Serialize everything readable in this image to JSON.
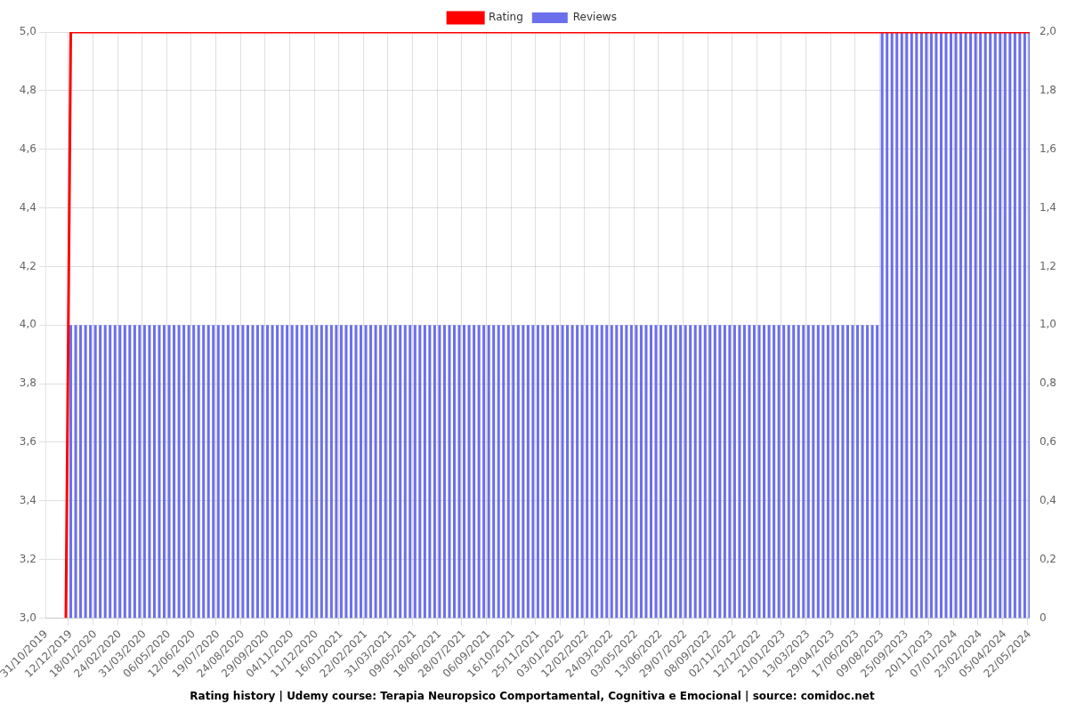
{
  "chart_data": {
    "type": "line",
    "title": "Rating history | Udemy course: Terapia Neuropsico Comportamental, Cognitiva e Emocional | source: comidoc.net",
    "categories": [
      "31/10/2019",
      null,
      null,
      null,
      null,
      "12/12/2019",
      null,
      null,
      null,
      null,
      "18/01/2020",
      null,
      null,
      null,
      null,
      "24/02/2020",
      null,
      null,
      null,
      null,
      "31/03/2020",
      null,
      null,
      null,
      null,
      "06/05/2020",
      null,
      null,
      null,
      null,
      "12/06/2020",
      null,
      null,
      null,
      null,
      "19/07/2020",
      null,
      null,
      null,
      null,
      "24/08/2020",
      null,
      null,
      null,
      null,
      "29/09/2020",
      null,
      null,
      null,
      null,
      "04/11/2020",
      null,
      null,
      null,
      null,
      "11/12/2020",
      null,
      null,
      null,
      null,
      "16/01/2021",
      null,
      null,
      null,
      null,
      "22/02/2021",
      null,
      null,
      null,
      null,
      "31/03/2021",
      null,
      null,
      null,
      null,
      "09/05/2021",
      null,
      null,
      null,
      null,
      "18/06/2021",
      null,
      null,
      null,
      null,
      "28/07/2021",
      null,
      null,
      null,
      null,
      "06/09/2021",
      null,
      null,
      null,
      null,
      "16/10/2021",
      null,
      null,
      null,
      null,
      "25/11/2021",
      null,
      null,
      null,
      null,
      "03/01/2022",
      null,
      null,
      null,
      null,
      "12/02/2022",
      null,
      null,
      null,
      null,
      "24/03/2022",
      null,
      null,
      null,
      null,
      "03/05/2022",
      null,
      null,
      null,
      null,
      "13/06/2022",
      null,
      null,
      null,
      null,
      "29/07/2022",
      null,
      null,
      null,
      null,
      "08/09/2022",
      null,
      null,
      null,
      null,
      "02/11/2022",
      null,
      null,
      null,
      null,
      "12/12/2022",
      null,
      null,
      null,
      null,
      "21/01/2023",
      null,
      null,
      null,
      null,
      "13/03/2023",
      null,
      null,
      null,
      null,
      "29/04/2023",
      null,
      null,
      null,
      null,
      "17/06/2023",
      null,
      null,
      null,
      null,
      "09/08/2023",
      null,
      null,
      null,
      null,
      "25/09/2023",
      null,
      null,
      null,
      null,
      "20/11/2023",
      null,
      null,
      null,
      null,
      "07/01/2024",
      null,
      null,
      null,
      null,
      "23/02/2024",
      null,
      null,
      null,
      null,
      "05/04/2024",
      null,
      null,
      null,
      null,
      "22/05/2024"
    ],
    "series": [
      {
        "name": "Rating",
        "type": "line",
        "color": "#ff0000",
        "values": [
          null,
          null,
          null,
          null,
          3,
          5,
          5,
          5,
          5,
          5,
          5,
          5,
          5,
          5,
          5,
          5,
          5,
          5,
          5,
          5,
          5,
          5,
          5,
          5,
          5,
          5,
          5,
          5,
          5,
          5,
          5,
          5,
          5,
          5,
          5,
          5,
          5,
          5,
          5,
          5,
          5,
          5,
          5,
          5,
          5,
          5,
          5,
          5,
          5,
          5,
          5,
          5,
          5,
          5,
          5,
          5,
          5,
          5,
          5,
          5,
          5,
          5,
          5,
          5,
          5,
          5,
          5,
          5,
          5,
          5,
          5,
          5,
          5,
          5,
          5,
          5,
          5,
          5,
          5,
          5,
          5,
          5,
          5,
          5,
          5,
          5,
          5,
          5,
          5,
          5,
          5,
          5,
          5,
          5,
          5,
          5,
          5,
          5,
          5,
          5,
          5,
          5,
          5,
          5,
          5,
          5,
          5,
          5,
          5,
          5,
          5,
          5,
          5,
          5,
          5,
          5,
          5,
          5,
          5,
          5,
          5,
          5,
          5,
          5,
          5,
          5,
          5,
          5,
          5,
          5,
          5,
          5,
          5,
          5,
          5,
          5,
          5,
          5,
          5,
          5,
          5,
          5,
          5,
          5,
          5,
          5,
          5,
          5,
          5,
          5,
          5,
          5,
          5,
          5,
          5,
          5,
          5,
          5,
          5,
          5,
          5,
          5,
          5,
          5,
          5,
          5,
          5,
          5,
          5,
          5,
          5,
          5,
          5,
          5,
          5,
          5,
          5,
          5,
          5,
          5,
          5,
          5,
          5,
          5,
          5,
          5,
          5,
          5,
          5,
          5,
          5,
          5,
          5,
          5,
          5,
          5,
          5,
          5,
          5,
          5,
          5
        ]
      },
      {
        "name": "Reviews",
        "type": "bar",
        "axis": "y2",
        "color": "#6b6fec",
        "values": [
          0,
          0,
          0,
          0,
          0,
          1,
          1,
          1,
          1,
          1,
          1,
          1,
          1,
          1,
          1,
          1,
          1,
          1,
          1,
          1,
          1,
          1,
          1,
          1,
          1,
          1,
          1,
          1,
          1,
          1,
          1,
          1,
          1,
          1,
          1,
          1,
          1,
          1,
          1,
          1,
          1,
          1,
          1,
          1,
          1,
          1,
          1,
          1,
          1,
          1,
          1,
          1,
          1,
          1,
          1,
          1,
          1,
          1,
          1,
          1,
          1,
          1,
          1,
          1,
          1,
          1,
          1,
          1,
          1,
          1,
          1,
          1,
          1,
          1,
          1,
          1,
          1,
          1,
          1,
          1,
          1,
          1,
          1,
          1,
          1,
          1,
          1,
          1,
          1,
          1,
          1,
          1,
          1,
          1,
          1,
          1,
          1,
          1,
          1,
          1,
          1,
          1,
          1,
          1,
          1,
          1,
          1,
          1,
          1,
          1,
          1,
          1,
          1,
          1,
          1,
          1,
          1,
          1,
          1,
          1,
          1,
          1,
          1,
          1,
          1,
          1,
          1,
          1,
          1,
          1,
          1,
          1,
          1,
          1,
          1,
          1,
          1,
          1,
          1,
          1,
          1,
          1,
          1,
          1,
          1,
          1,
          1,
          1,
          1,
          1,
          1,
          1,
          1,
          1,
          1,
          1,
          1,
          1,
          1,
          1,
          1,
          1,
          1,
          1,
          1,
          1,
          1,
          1,
          1,
          1,
          2,
          2,
          2,
          2,
          2,
          2,
          2,
          2,
          2,
          2,
          2,
          2,
          2,
          2,
          2,
          2,
          2,
          2,
          2,
          2,
          2,
          2,
          2,
          2,
          2,
          2,
          2,
          2,
          2,
          2,
          2
        ]
      }
    ],
    "ylim": [
      3,
      5
    ],
    "yticks": [
      {
        "value": 3,
        "label": "3,0"
      },
      {
        "value": 3.2,
        "label": "3,2"
      },
      {
        "value": 3.4,
        "label": "3,4"
      },
      {
        "value": 3.6,
        "label": "3,6"
      },
      {
        "value": 3.8,
        "label": "3,8"
      },
      {
        "value": 4,
        "label": "4,0"
      },
      {
        "value": 4.2,
        "label": "4,2"
      },
      {
        "value": 4.4,
        "label": "4,4"
      },
      {
        "value": 4.6,
        "label": "4,6"
      },
      {
        "value": 4.8,
        "label": "4,8"
      },
      {
        "value": 5,
        "label": "5,0"
      }
    ],
    "y2lim": [
      0,
      2
    ],
    "y2ticks": [
      0,
      {
        "value": 0.2,
        "label": "0,2"
      },
      {
        "value": 0.4,
        "label": "0,4"
      },
      {
        "value": 0.6,
        "label": "0,6"
      },
      {
        "value": 0.8,
        "label": "0,8"
      },
      {
        "value": 1,
        "label": "1,0"
      },
      {
        "value": 1.2,
        "label": "1,2"
      },
      {
        "value": 1.4,
        "label": "1,4"
      },
      {
        "value": 1.6,
        "label": "1,6"
      },
      {
        "value": 1.8,
        "label": "1,8"
      },
      {
        "value": 2,
        "label": "2,0"
      }
    ],
    "grid": true,
    "legend": "top"
  }
}
